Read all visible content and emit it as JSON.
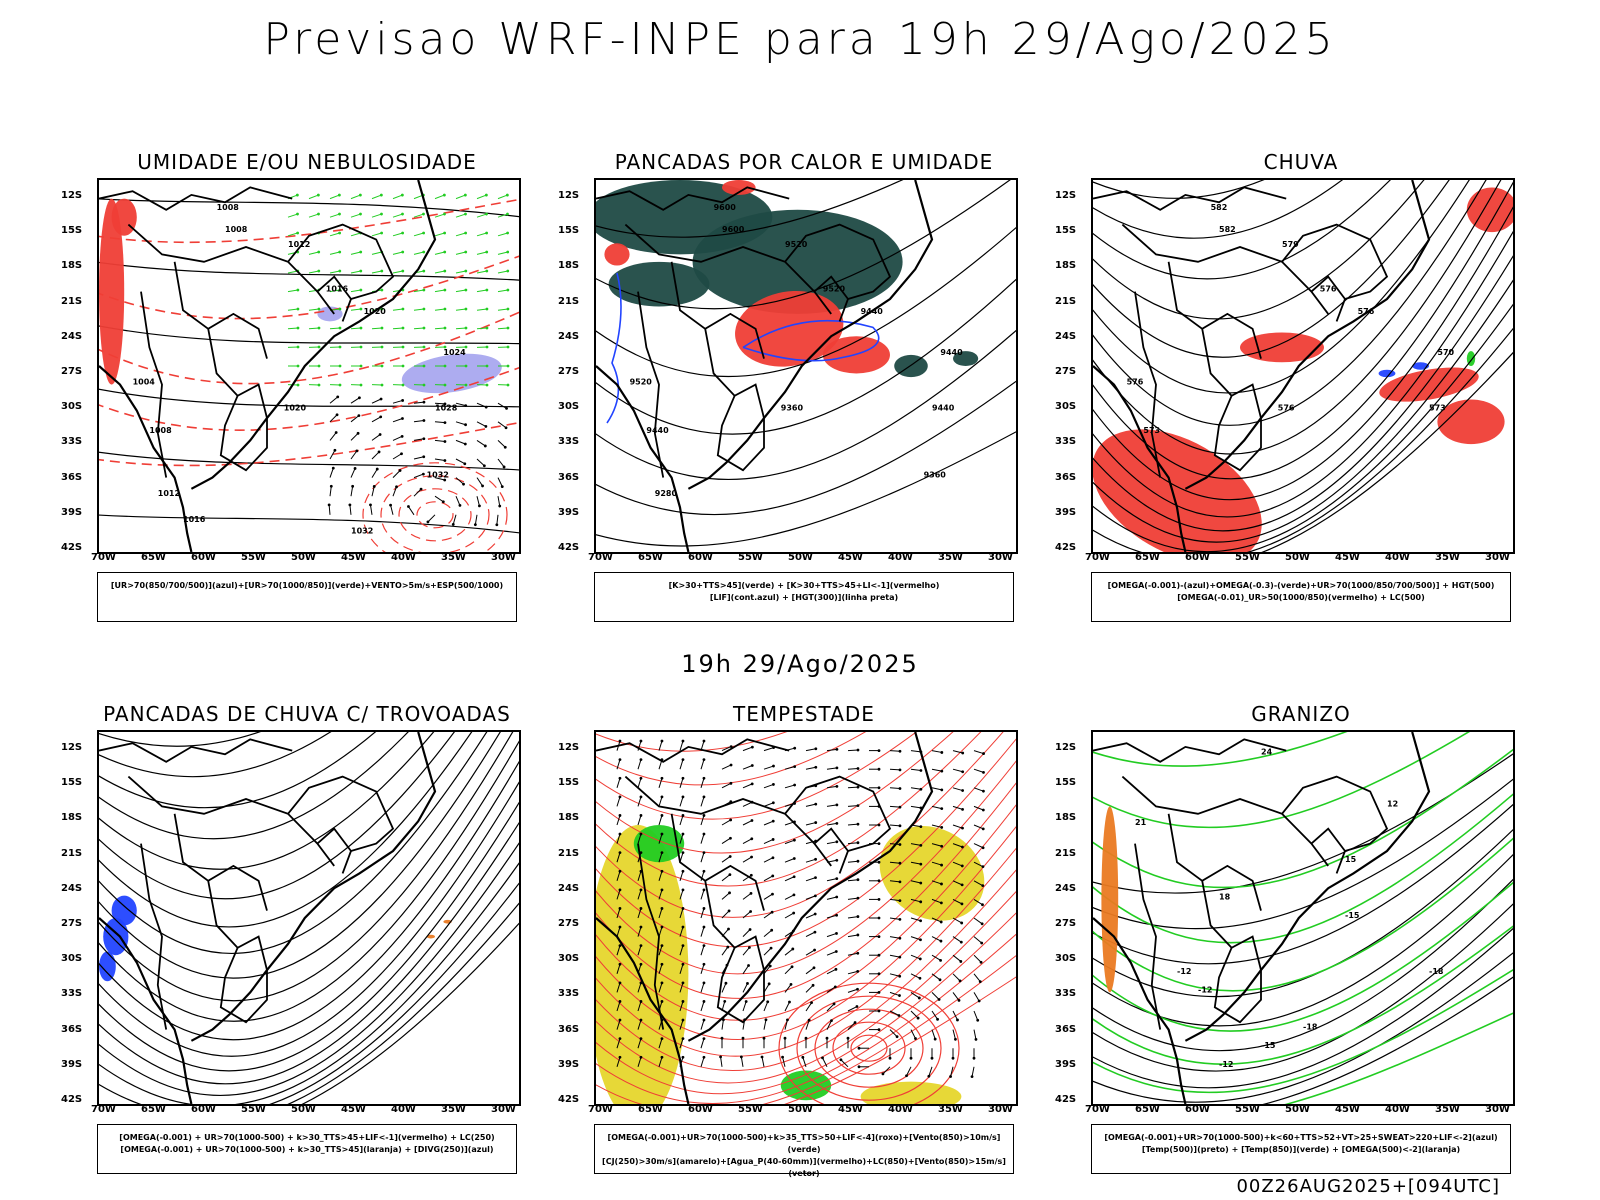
{
  "header": {
    "title": "Previsao WRF-INPE  para 19h 29/Ago/2025",
    "subtitle": "19h 29/Ago/2025",
    "footer": "00Z26AUG2025+[094UTC]"
  },
  "axes": {
    "lat_labels": [
      "12S",
      "15S",
      "18S",
      "21S",
      "24S",
      "27S",
      "30S",
      "33S",
      "36S",
      "39S",
      "42S"
    ],
    "lon_labels": [
      "70W",
      "65W",
      "60W",
      "55W",
      "50W",
      "45W",
      "40W",
      "35W",
      "30W"
    ]
  },
  "panels": [
    {
      "id": "umidade",
      "title": "UMIDADE E/OU NEBULOSIDADE",
      "legend": [
        "[UR>70(850/700/500)](azul)+[UR>70(1000/850)](verde)+VENTO>5m/s+ESP(500/1000)"
      ],
      "labels": [
        "1008",
        "1008",
        "1012",
        "1016",
        "1020",
        "1004",
        "1024",
        "1008",
        "1020",
        "1028",
        "1012",
        "1032",
        "1016",
        "1032"
      ]
    },
    {
      "id": "pancadas-calor",
      "title": "PANCADAS POR CALOR E UMIDADE",
      "legend": [
        "[K>30+TTS>45](verde) + [K>30+TTS>45+LI<-1](vermelho)",
        "[LIF](cont.azul) + [HGT(300)](linha preta)"
      ],
      "labels": [
        "9600",
        "9600",
        "9520",
        "9520",
        "9440",
        "9520",
        "9440",
        "9440",
        "9360",
        "9440",
        "9280",
        "9360"
      ]
    },
    {
      "id": "chuva",
      "title": "CHUVA",
      "legend": [
        "[OMEGA(-0.001)-(azul)+OMEGA(-0.3)-(verde)+UR>70(1000/850/700/500)] + HGT(500)",
        "[OMEGA(-0.01)_UR>50(1000/850)(vermelho) + LC(500)"
      ],
      "labels": [
        "582",
        "582",
        "579",
        "576",
        "576",
        "576",
        "570",
        "573",
        "576",
        "573"
      ]
    },
    {
      "id": "trovoadas",
      "title": "PANCADAS DE CHUVA C/ TROVOADAS",
      "legend": [
        "[OMEGA(-0.001) + UR>70(1000-500) + k>30_TTS>45+LIF<-1](vermelho) + LC(250)",
        "[OMEGA(-0.001) + UR>70(1000-500) + k>30_TTS>45](laranja) + [DIVG(250)](azul)"
      ],
      "labels": []
    },
    {
      "id": "tempestade",
      "title": "TEMPESTADE",
      "legend": [
        "[OMEGA(-0.001)+UR>70(1000-500)+k>35_TTS>50+LIF<-4](roxo)+[Vento(850)>10m/s](verde)",
        "[CJ(250)>30m/s](amarelo)+[Agua_P(40-60mm)](vermelho)+LC(850)+[Vento(850)>15m/s](vetor)"
      ],
      "labels": []
    },
    {
      "id": "granizo",
      "title": "GRANIZO",
      "legend": [
        "[OMEGA(-0.001)+UR>70(1000-500)+k<60+TTS>52+VT>25+SWEAT>220+LIF<-2](azul)",
        "[Temp(500)](preto) + [Temp(850)](verde) + [OMEGA(500)<-2](laranja)"
      ],
      "labels": [
        "24",
        "21",
        "18",
        "15",
        "12",
        "-12",
        "-15",
        "-18",
        "-12",
        "-12",
        "-15",
        "-18"
      ]
    }
  ],
  "colors": {
    "red": "#ef3e36",
    "green": "#22cc22",
    "blue": "#2244ff",
    "darkgreen": "#1f4a45",
    "yellow": "#e6d62c",
    "lavender": "#a9a8ef",
    "orange": "#ea7a22",
    "black": "#000000"
  }
}
